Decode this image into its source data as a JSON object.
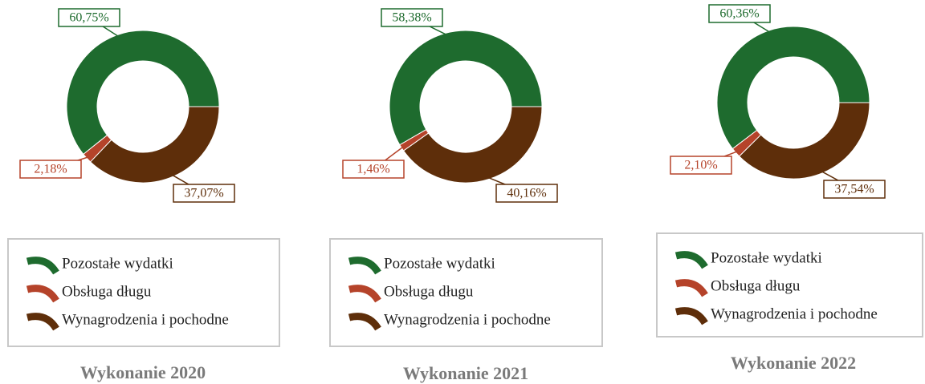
{
  "chart_data": [
    {
      "type": "donut",
      "title": "Wykonanie 2020",
      "categories": [
        "Pozostałe wydatki",
        "Obsługa długu",
        "Wynagrodzenia i pochodne"
      ],
      "values": [
        60.75,
        2.18,
        37.07
      ],
      "value_labels": [
        "60,75%",
        "2,18%",
        "37,07%"
      ],
      "colors": [
        "#1e6b2e",
        "#b5432a",
        "#5e2e0a"
      ]
    },
    {
      "type": "donut",
      "title": "Wykonanie 2021",
      "categories": [
        "Pozostałe wydatki",
        "Obsługa długu",
        "Wynagrodzenia i pochodne"
      ],
      "values": [
        58.38,
        1.46,
        40.16
      ],
      "value_labels": [
        "58,38%",
        "1,46%",
        "40,16%"
      ],
      "colors": [
        "#1e6b2e",
        "#b5432a",
        "#5e2e0a"
      ]
    },
    {
      "type": "donut",
      "title": "Wykonanie 2022",
      "categories": [
        "Pozostałe wydatki",
        "Obsługa długu",
        "Wynagrodzenia i pochodne"
      ],
      "values": [
        60.36,
        2.1,
        37.54
      ],
      "value_labels": [
        "60,36%",
        "2,10%",
        "37,54%"
      ],
      "colors": [
        "#1e6b2e",
        "#b5432a",
        "#5e2e0a"
      ]
    }
  ]
}
